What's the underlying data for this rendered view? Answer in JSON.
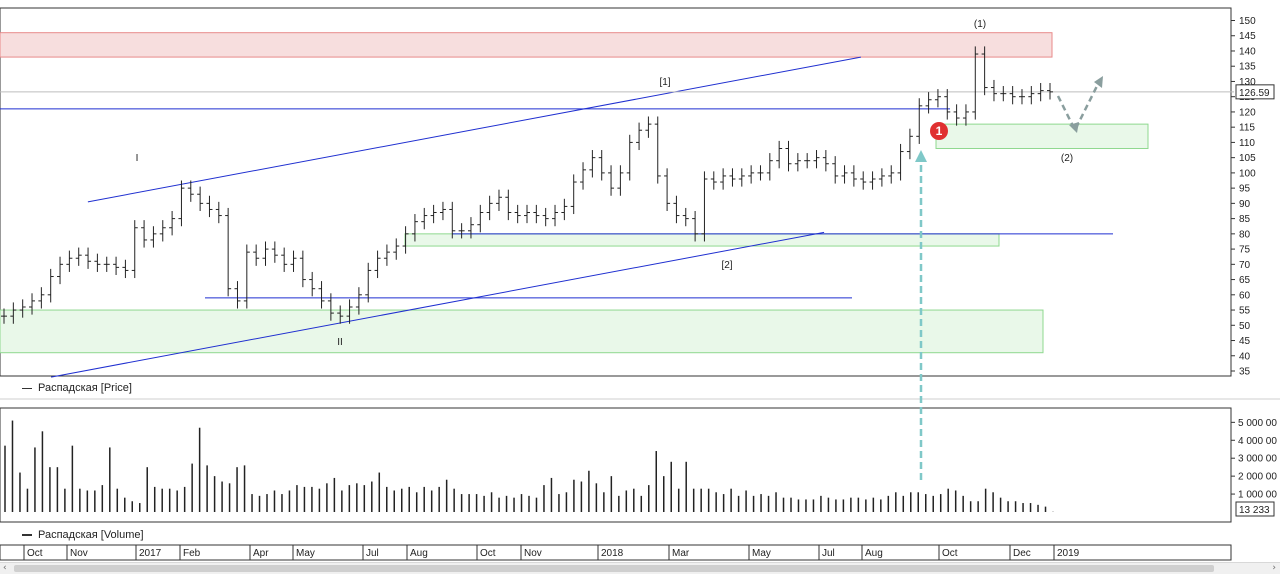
{
  "price_legend": "Распадская [Price]",
  "volume_legend": "Распадская [Volume]",
  "last_price_label": "126.59",
  "last_volume_label": "13 233",
  "colors": {
    "resistance_zone": "#f7dede",
    "resistance_border": "#e88a8a",
    "support_zone": "#e9f8e9",
    "support_border": "#8fd88f",
    "trend_line": "#1f2fd0",
    "bars": "#222222",
    "marker": "#e03030",
    "projection": "#8a9e9e",
    "signal_arrow": "#7fc8c8"
  },
  "annotations": {
    "wave_I": "I",
    "wave_II": "II",
    "wave_1b": "[1]",
    "wave_2b": "[2]",
    "wave_1p": "(1)",
    "wave_2p": "(2)",
    "marker": "1"
  },
  "chart_data": [
    {
      "type": "ohlc",
      "title": "Распадская [Price]",
      "ylim": [
        35,
        155
      ],
      "yticks": [
        35,
        40,
        45,
        50,
        55,
        60,
        65,
        70,
        75,
        80,
        85,
        90,
        95,
        100,
        105,
        110,
        115,
        120,
        125,
        130,
        135,
        140,
        145,
        150
      ],
      "last_value": 126.59,
      "x_labels": [
        "Oct",
        "Nov",
        "2017",
        "Feb",
        "Apr",
        "May",
        "Jul",
        "Aug",
        "Oct",
        "Nov",
        "2018",
        "Mar",
        "May",
        "Jul",
        "Aug",
        "Oct",
        "Dec",
        "2019"
      ],
      "weekly_close_approx": [
        53,
        55,
        56,
        58,
        60,
        66,
        70,
        72,
        73,
        71,
        70,
        70,
        69,
        68,
        82,
        78,
        80,
        82,
        85,
        95,
        93,
        90,
        88,
        86,
        62,
        58,
        74,
        72,
        75,
        73,
        70,
        72,
        65,
        62,
        58,
        54,
        53,
        56,
        60,
        68,
        72,
        74,
        76,
        80,
        84,
        86,
        87,
        88,
        81,
        81,
        83,
        87,
        90,
        92,
        87,
        86,
        87,
        86,
        85,
        87,
        89,
        97,
        101,
        105,
        100,
        95,
        100,
        110,
        114,
        116,
        99,
        90,
        86,
        85,
        80,
        98,
        97,
        99,
        98,
        99,
        100,
        100,
        104,
        108,
        103,
        104,
        104,
        105,
        103,
        99,
        100,
        98,
        97,
        98,
        99,
        100,
        107,
        112,
        122,
        124,
        125,
        120,
        118,
        120,
        139,
        128,
        126,
        126,
        125,
        125,
        126,
        127,
        126.59
      ],
      "zones": [
        {
          "kind": "resistance",
          "y": [
            138,
            146
          ]
        },
        {
          "kind": "support",
          "y": [
            41,
            55
          ]
        },
        {
          "kind": "support",
          "y": [
            76,
            80
          ]
        },
        {
          "kind": "support",
          "y": [
            108,
            116
          ]
        }
      ],
      "horizontal_levels": [
        59,
        80,
        121
      ],
      "trend_lines": [
        {
          "from": [
            0.07,
            90.5
          ],
          "to": [
            0.7,
            138
          ]
        },
        {
          "from": [
            0.04,
            33
          ],
          "to": [
            0.67,
            80.5
          ]
        }
      ]
    },
    {
      "type": "bar",
      "title": "Распадская [Volume]",
      "ylim": [
        0,
        5800000
      ],
      "yticks_labels": [
        "1 000 00",
        "2 000 00",
        "3 000 00",
        "4 000 00",
        "5 000 00"
      ],
      "yticks": [
        1000000,
        2000000,
        3000000,
        4000000,
        5000000
      ],
      "last_value": 13233,
      "values": [
        3700000,
        5100000,
        2200000,
        1300000,
        3600000,
        4500000,
        2500000,
        2500000,
        1300000,
        3700000,
        1300000,
        1200000,
        1200000,
        1500000,
        3600000,
        1300000,
        800000,
        600000,
        500000,
        2500000,
        1400000,
        1300000,
        1300000,
        1200000,
        1400000,
        2700000,
        4700000,
        2600000,
        2000000,
        1700000,
        1600000,
        2500000,
        2600000,
        1000000,
        900000,
        1000000,
        1200000,
        1000000,
        1200000,
        1500000,
        1400000,
        1400000,
        1300000,
        1600000,
        1900000,
        1200000,
        1500000,
        1600000,
        1500000,
        1700000,
        2200000,
        1400000,
        1200000,
        1300000,
        1400000,
        1100000,
        1400000,
        1200000,
        1400000,
        1800000,
        1300000,
        1000000,
        1000000,
        1000000,
        900000,
        1100000,
        800000,
        900000,
        800000,
        1000000,
        900000,
        800000,
        1500000,
        1900000,
        1000000,
        1100000,
        1800000,
        1700000,
        2300000,
        1600000,
        1100000,
        2000000,
        900000,
        1200000,
        1300000,
        900000,
        1500000,
        3400000,
        2000000,
        2800000,
        1300000,
        2800000,
        1300000,
        1300000,
        1300000,
        1100000,
        1000000,
        1300000,
        900000,
        1200000,
        900000,
        1000000,
        900000,
        1100000,
        800000,
        800000,
        700000,
        700000,
        700000,
        900000,
        800000,
        700000,
        700000,
        800000,
        800000,
        700000,
        800000,
        700000,
        900000,
        1100000,
        900000,
        1100000,
        1100000,
        1000000,
        900000,
        1000000,
        1300000,
        1200000,
        900000,
        600000,
        600000,
        1300000,
        1100000,
        800000,
        600000,
        600000,
        500000,
        500000,
        400000,
        300000,
        13233
      ]
    }
  ]
}
